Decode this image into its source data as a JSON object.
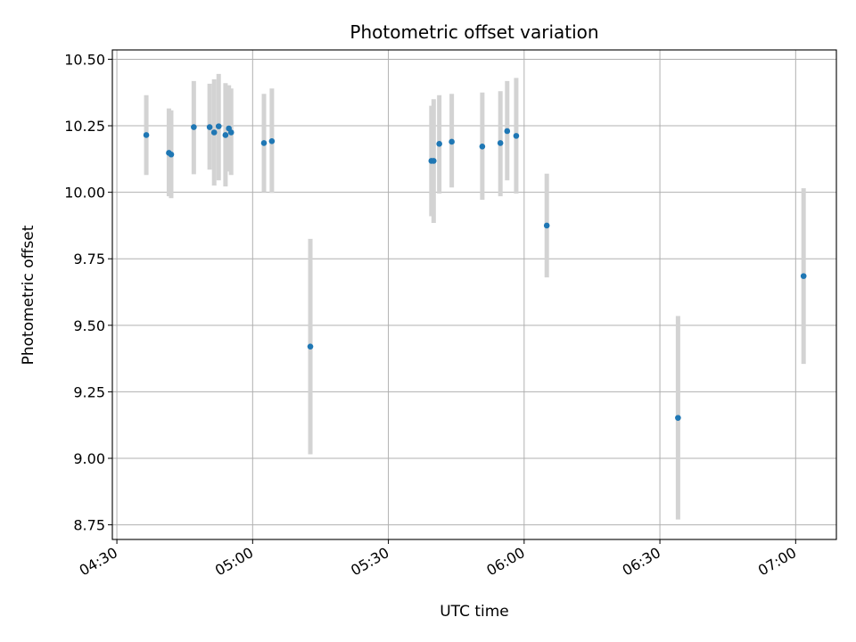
{
  "chart_data": {
    "type": "scatter",
    "title": "Photometric offset variation",
    "xlabel": "UTC time",
    "ylabel": "Photometric offset",
    "x_unit": "UTC time (HH:MM)",
    "xlim": [
      "04:29",
      "07:09"
    ],
    "ylim": [
      8.695,
      10.535
    ],
    "x_ticks": [
      "04:30",
      "05:00",
      "05:30",
      "06:00",
      "06:30",
      "07:00"
    ],
    "y_ticks": [
      "8.75",
      "9.00",
      "9.25",
      "9.50",
      "9.75",
      "10.00",
      "10.25",
      "10.50"
    ],
    "grid": true,
    "point_color": "#1f77b4",
    "errorbar_color": "#d3d3d3",
    "points": [
      {
        "x": "04:36:30",
        "y": 10.215,
        "lo": 10.065,
        "hi": 10.365
      },
      {
        "x": "04:41:30",
        "y": 10.148,
        "lo": 9.985,
        "hi": 10.315
      },
      {
        "x": "04:42:00",
        "y": 10.142,
        "lo": 9.978,
        "hi": 10.308
      },
      {
        "x": "04:47:00",
        "y": 10.245,
        "lo": 10.068,
        "hi": 10.418
      },
      {
        "x": "04:50:30",
        "y": 10.245,
        "lo": 10.085,
        "hi": 10.408
      },
      {
        "x": "04:51:30",
        "y": 10.225,
        "lo": 10.025,
        "hi": 10.425
      },
      {
        "x": "04:52:30",
        "y": 10.248,
        "lo": 10.045,
        "hi": 10.445
      },
      {
        "x": "04:54:00",
        "y": 10.215,
        "lo": 10.022,
        "hi": 10.41
      },
      {
        "x": "04:54:45",
        "y": 10.24,
        "lo": 10.078,
        "hi": 10.402
      },
      {
        "x": "04:55:15",
        "y": 10.225,
        "lo": 10.065,
        "hi": 10.39
      },
      {
        "x": "05:02:30",
        "y": 10.185,
        "lo": 10.0,
        "hi": 10.37
      },
      {
        "x": "05:04:15",
        "y": 10.192,
        "lo": 9.998,
        "hi": 10.39
      },
      {
        "x": "05:12:45",
        "y": 9.42,
        "lo": 9.015,
        "hi": 9.825
      },
      {
        "x": "05:39:30",
        "y": 10.118,
        "lo": 9.91,
        "hi": 10.325
      },
      {
        "x": "05:40:00",
        "y": 10.118,
        "lo": 9.885,
        "hi": 10.35
      },
      {
        "x": "05:41:15",
        "y": 10.182,
        "lo": 9.995,
        "hi": 10.365
      },
      {
        "x": "05:44:00",
        "y": 10.19,
        "lo": 10.018,
        "hi": 10.37
      },
      {
        "x": "05:50:45",
        "y": 10.172,
        "lo": 9.972,
        "hi": 10.375
      },
      {
        "x": "05:54:45",
        "y": 10.185,
        "lo": 9.985,
        "hi": 10.38
      },
      {
        "x": "05:56:15",
        "y": 10.23,
        "lo": 10.045,
        "hi": 10.418
      },
      {
        "x": "05:58:15",
        "y": 10.212,
        "lo": 9.995,
        "hi": 10.43
      },
      {
        "x": "06:05:00",
        "y": 9.875,
        "lo": 9.68,
        "hi": 10.07
      },
      {
        "x": "06:34:00",
        "y": 9.152,
        "lo": 8.77,
        "hi": 9.535
      },
      {
        "x": "07:01:45",
        "y": 9.685,
        "lo": 9.355,
        "hi": 10.015
      }
    ]
  }
}
